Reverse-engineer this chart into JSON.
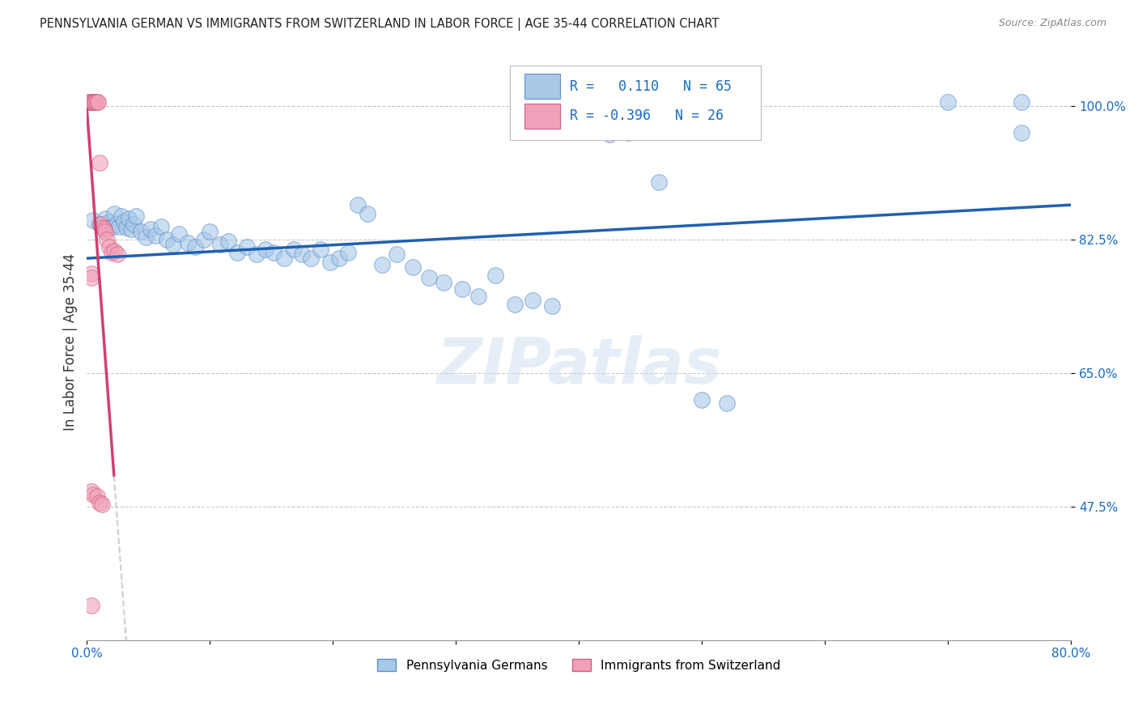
{
  "title": "PENNSYLVANIA GERMAN VS IMMIGRANTS FROM SWITZERLAND IN LABOR FORCE | AGE 35-44 CORRELATION CHART",
  "source": "Source: ZipAtlas.com",
  "ylabel": "In Labor Force | Age 35-44",
  "x_min": 0.0,
  "x_max": 0.8,
  "y_min": 0.3,
  "y_max": 1.08,
  "y_ticks": [
    0.475,
    0.65,
    0.825,
    1.0
  ],
  "y_tick_labels": [
    "47.5%",
    "65.0%",
    "82.5%",
    "100.0%"
  ],
  "x_ticks": [
    0.0,
    0.1,
    0.2,
    0.3,
    0.4,
    0.5,
    0.6,
    0.7,
    0.8
  ],
  "x_tick_labels": [
    "0.0%",
    "",
    "",
    "",
    "",
    "",
    "",
    "",
    "80.0%"
  ],
  "blue_r": 0.11,
  "blue_n": 65,
  "pink_r": -0.396,
  "pink_n": 26,
  "blue_line_color": "#2060b0",
  "pink_line_color": "#d04070",
  "blue_dot_color": "#a8c8e8",
  "blue_dot_edge": "#6090c8",
  "pink_dot_color": "#f0a0b8",
  "pink_dot_edge": "#d06080",
  "dot_size": 200,
  "dot_alpha": 0.6,
  "watermark": "ZIPatlas",
  "background_color": "#ffffff",
  "grid_color": "#c8c8c8",
  "blue_scatter_x": [
    0.005,
    0.01,
    0.015,
    0.018,
    0.02,
    0.022,
    0.024,
    0.026,
    0.028,
    0.03,
    0.032,
    0.034,
    0.036,
    0.038,
    0.04,
    0.044,
    0.048,
    0.052,
    0.056,
    0.06,
    0.065,
    0.07,
    0.075,
    0.082,
    0.088,
    0.095,
    0.1,
    0.108,
    0.115,
    0.122,
    0.13,
    0.138,
    0.145,
    0.152,
    0.16,
    0.168,
    0.175,
    0.182,
    0.19,
    0.198,
    0.205,
    0.212,
    0.22,
    0.228,
    0.24,
    0.252,
    0.265,
    0.278,
    0.29,
    0.305,
    0.318,
    0.332,
    0.348,
    0.362,
    0.378,
    0.395,
    0.41,
    0.425,
    0.44,
    0.465,
    0.5,
    0.52,
    0.7,
    0.76,
    0.76
  ],
  "blue_scatter_y": [
    0.85,
    0.845,
    0.852,
    0.848,
    0.84,
    0.858,
    0.845,
    0.842,
    0.855,
    0.848,
    0.84,
    0.852,
    0.838,
    0.845,
    0.855,
    0.835,
    0.828,
    0.838,
    0.83,
    0.842,
    0.825,
    0.818,
    0.832,
    0.82,
    0.815,
    0.825,
    0.835,
    0.818,
    0.822,
    0.808,
    0.815,
    0.805,
    0.812,
    0.808,
    0.8,
    0.812,
    0.805,
    0.8,
    0.812,
    0.795,
    0.8,
    0.808,
    0.87,
    0.858,
    0.792,
    0.805,
    0.788,
    0.775,
    0.768,
    0.76,
    0.75,
    0.778,
    0.74,
    0.745,
    0.738,
    0.97,
    0.968,
    0.962,
    0.965,
    0.9,
    0.615,
    0.61,
    1.005,
    1.005,
    0.965
  ],
  "pink_scatter_x": [
    0.002,
    0.003,
    0.004,
    0.005,
    0.005,
    0.006,
    0.007,
    0.008,
    0.009,
    0.01,
    0.011,
    0.013,
    0.014,
    0.015,
    0.016,
    0.018,
    0.02,
    0.022,
    0.025,
    0.004,
    0.005,
    0.008,
    0.01,
    0.012,
    0.004,
    0.004
  ],
  "pink_scatter_y": [
    1.005,
    1.005,
    1.005,
    1.005,
    1.005,
    1.005,
    1.005,
    1.005,
    1.005,
    0.925,
    0.845,
    0.84,
    0.838,
    0.835,
    0.825,
    0.815,
    0.808,
    0.81,
    0.805,
    0.495,
    0.49,
    0.488,
    0.48,
    0.478,
    0.78,
    0.775
  ],
  "pink_solo_x": [
    0.004
  ],
  "pink_solo_y": [
    0.345
  ]
}
